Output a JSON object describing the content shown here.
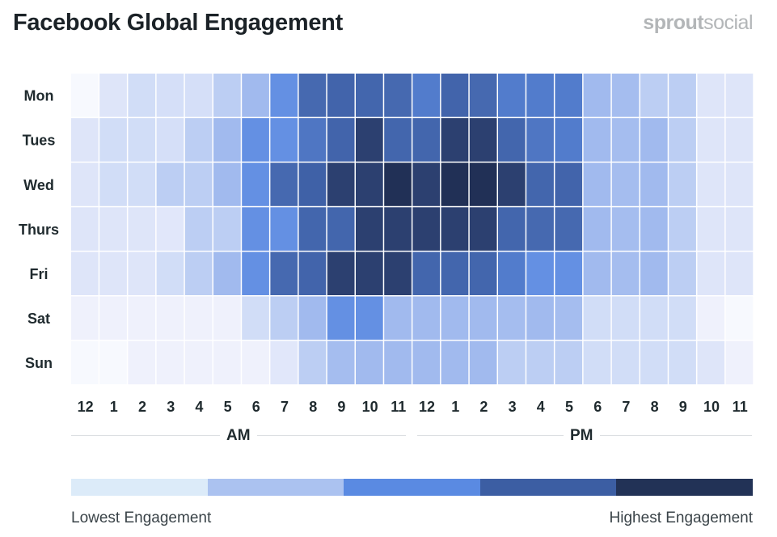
{
  "header": {
    "title": "Facebook Global Engagement",
    "brand_bold": "sprout",
    "brand_light": "social"
  },
  "chart_data": {
    "type": "heatmap",
    "title": "Facebook Global Engagement",
    "rows": [
      "Mon",
      "Tues",
      "Wed",
      "Thurs",
      "Fri",
      "Sat",
      "Sun"
    ],
    "columns": [
      "12",
      "1",
      "2",
      "3",
      "4",
      "5",
      "6",
      "7",
      "8",
      "9",
      "10",
      "11",
      "12",
      "1",
      "2",
      "3",
      "4",
      "5",
      "6",
      "7",
      "8",
      "9",
      "10",
      "11"
    ],
    "column_groups": [
      {
        "label": "AM",
        "start": 0,
        "end": 11
      },
      {
        "label": "PM",
        "start": 12,
        "end": 23
      }
    ],
    "scale_min": 0,
    "scale_max": 10,
    "values": [
      [
        0.3,
        2.5,
        3.2,
        3.0,
        3.0,
        4.0,
        4.8,
        6.3,
        7.8,
        8.1,
        8.0,
        7.8,
        7.0,
        8.1,
        7.8,
        7.0,
        7.0,
        7.0,
        4.8,
        4.7,
        4.0,
        4.0,
        2.5,
        2.5
      ],
      [
        2.5,
        3.2,
        3.2,
        3.0,
        4.0,
        4.8,
        6.3,
        6.3,
        7.2,
        8.1,
        9.5,
        8.0,
        8.0,
        9.5,
        9.5,
        8.0,
        7.2,
        7.0,
        4.8,
        4.7,
        4.8,
        4.0,
        2.5,
        2.5
      ],
      [
        2.5,
        3.2,
        3.2,
        4.0,
        4.0,
        4.8,
        6.3,
        7.8,
        8.3,
        9.5,
        9.5,
        10.0,
        9.5,
        10.0,
        10.0,
        9.5,
        8.0,
        8.1,
        4.8,
        4.7,
        4.8,
        4.0,
        2.5,
        2.5
      ],
      [
        2.5,
        2.5,
        2.5,
        2.3,
        4.0,
        4.0,
        6.3,
        6.3,
        8.0,
        8.0,
        9.5,
        9.5,
        9.5,
        9.5,
        9.5,
        8.0,
        7.8,
        7.8,
        4.8,
        4.7,
        4.8,
        4.0,
        2.5,
        2.5
      ],
      [
        2.5,
        2.5,
        2.5,
        3.2,
        4.0,
        4.8,
        6.3,
        7.8,
        8.1,
        9.5,
        9.5,
        9.5,
        8.0,
        8.0,
        8.0,
        7.0,
        6.3,
        6.3,
        4.8,
        4.7,
        4.8,
        4.0,
        2.5,
        2.5
      ],
      [
        1.3,
        1.3,
        1.3,
        1.3,
        1.3,
        1.3,
        3.2,
        4.0,
        4.8,
        6.3,
        6.3,
        4.8,
        4.8,
        4.8,
        4.8,
        4.7,
        4.8,
        4.7,
        3.2,
        3.2,
        3.2,
        3.2,
        1.3,
        0.3
      ],
      [
        0.3,
        0.3,
        1.3,
        1.3,
        1.3,
        1.3,
        1.3,
        2.3,
        4.0,
        4.7,
        4.8,
        4.8,
        4.8,
        4.8,
        4.8,
        4.0,
        4.0,
        4.0,
        3.2,
        3.2,
        3.2,
        3.2,
        2.5,
        1.3
      ]
    ],
    "legend": {
      "low_label": "Lowest Engagement",
      "high_label": "Highest Engagement",
      "colors": [
        "#dcebf9",
        "#abc2f0",
        "#5a8ae2",
        "#3c5ea3",
        "#223256"
      ]
    }
  }
}
